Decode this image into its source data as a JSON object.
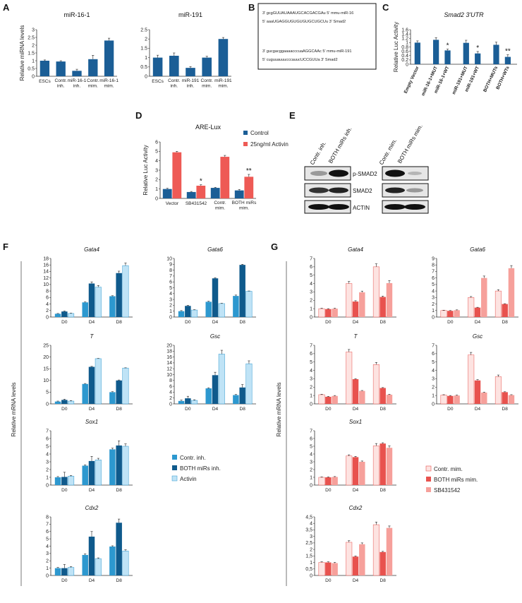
{
  "panels": {
    "A": "A",
    "B": "B",
    "C": "C",
    "D": "D",
    "E": "E",
    "F": "F",
    "G": "G"
  },
  "colors": {
    "blue": "#1b5e96",
    "red": "#ee5a55",
    "f1": "#2d98cf",
    "f2": "#0f5a8c",
    "f3": "#bfe3f6",
    "g1": "#fde3e1",
    "g2": "#e8524e",
    "g3": "#f6a09b"
  },
  "seqB": {
    "s1": "3' gcgGUUAUAAAUGCACGACGAu 5' mmu-miR-16",
    "s2": "5' aaaUGAGGUGUGUGUGCUGCUu 3' Smad2",
    "s3": "3' gucgacggaaaacccuaAGGCAAc 5' mmu-miR-191",
    "s4": "5' cuguuauuucccauucUCCGUUa 3' Smad2"
  },
  "blots": {
    "left_header": [
      "Contr. inh.",
      "BOTH miRs inh."
    ],
    "right_header": [
      "Contr. mim.",
      "BOTH miRs mim."
    ],
    "labels": [
      "p-SMAD2",
      "SMAD2",
      "ACTIN"
    ]
  },
  "legendF": [
    "Contr. inh.",
    "BOTH miRs inh.",
    "Activin"
  ],
  "legendG": [
    "Contr. mim.",
    "BOTH miRs mim.",
    "SB431542"
  ],
  "legendD": [
    "Control",
    "25ng/ml Activin"
  ],
  "ylabelF": "Relative mRNA levels",
  "ylabelG": "Relative mRNA levels",
  "chart_data": [
    {
      "id": "A1",
      "type": "bar",
      "title": "miR-16-1",
      "ylabel": "Relative miRNA levels",
      "ylim": [
        0,
        3
      ],
      "yticks": [
        0,
        0.5,
        1,
        1.5,
        2,
        2.5,
        3
      ],
      "categories": [
        "ESCs",
        "Contr. inh.",
        "miR-16-1 inh.",
        "Contr. mim.",
        "miR-16-1 mim."
      ],
      "series": [
        {
          "name": "miR-16-1",
          "values": [
            1.0,
            0.95,
            0.35,
            1.1,
            2.3
          ],
          "errors": [
            0.05,
            0.05,
            0.1,
            0.25,
            0.15
          ]
        }
      ]
    },
    {
      "id": "A2",
      "type": "bar",
      "title": "miR-191",
      "ylabel": "",
      "ylim": [
        0,
        2.5
      ],
      "yticks": [
        0,
        0.5,
        1,
        1.5,
        2,
        2.5
      ],
      "categories": [
        "ESCs",
        "Contr. inh.",
        "miR-191 inh.",
        "Contr. mim.",
        "miR-191 mim."
      ],
      "series": [
        {
          "name": "miR-191",
          "values": [
            1.0,
            1.1,
            0.45,
            1.0,
            2.0
          ],
          "errors": [
            0.13,
            0.15,
            0.07,
            0.07,
            0.08
          ]
        }
      ]
    },
    {
      "id": "C",
      "type": "bar",
      "title": "Smad2 3'UTR",
      "ylabel": "Relative Luc Activity",
      "ylim": [
        0,
        1.6
      ],
      "yticks": [
        0,
        0.2,
        0.4,
        0.6,
        0.8,
        1,
        1.2,
        1.4,
        1.6
      ],
      "categories": [
        "Empty Vector",
        "miR-16-1+MUT",
        "miR-16-1+WT",
        "miR-191+MUT",
        "miR-191+WT",
        "BOTH+MUTs",
        "BOTH+WTs"
      ],
      "series": [
        {
          "name": "Luc",
          "values": [
            1.0,
            1.13,
            0.64,
            0.99,
            0.5,
            0.9,
            0.34
          ],
          "errors": [
            0.08,
            0.1,
            0.06,
            0.12,
            0.09,
            0.12,
            0.1
          ]
        }
      ],
      "annotations": [
        "",
        "",
        "*",
        "",
        "*",
        "",
        "**"
      ]
    },
    {
      "id": "D",
      "type": "bar",
      "title": "ARE-Lux",
      "ylabel": "Relative Luc Activity",
      "ylim": [
        0,
        6
      ],
      "yticks": [
        0,
        1,
        2,
        3,
        4,
        5,
        6
      ],
      "categories": [
        "Vector",
        "SB431542",
        "Contr. mim.",
        "BOTH miRs mim."
      ],
      "series": [
        {
          "name": "Control",
          "values": [
            1.0,
            0.68,
            1.12,
            0.85
          ],
          "errors": [
            0.08,
            0.06,
            0.06,
            0.1
          ]
        },
        {
          "name": "25ng/ml Activin",
          "values": [
            4.9,
            1.35,
            4.42,
            2.3
          ],
          "errors": [
            0.1,
            0.1,
            0.15,
            0.25
          ]
        }
      ],
      "annotations": [
        "",
        "*",
        "",
        "**"
      ]
    },
    {
      "id": "F-Gata4",
      "type": "bar",
      "title": "Gata4",
      "ylim": [
        0,
        18
      ],
      "yticks": [
        0,
        2,
        4,
        6,
        8,
        10,
        12,
        14,
        16,
        18
      ],
      "categories": [
        "D0",
        "D4",
        "D8"
      ],
      "series": [
        {
          "name": "Contr. inh.",
          "values": [
            1,
            4.5,
            6.4
          ],
          "errors": [
            0.1,
            0.15,
            0.15
          ]
        },
        {
          "name": "BOTH miRs inh.",
          "values": [
            1.7,
            10.3,
            13.5
          ],
          "errors": [
            0.15,
            0.5,
            0.6
          ]
        },
        {
          "name": "Activin",
          "values": [
            1.1,
            9.2,
            15.8
          ],
          "errors": [
            0.1,
            0.5,
            0.8
          ]
        }
      ]
    },
    {
      "id": "F-Gata6",
      "type": "bar",
      "title": "Gata6",
      "ylim": [
        0,
        10
      ],
      "yticks": [
        0,
        1,
        2,
        3,
        4,
        5,
        6,
        7,
        8,
        9,
        10
      ],
      "categories": [
        "D0",
        "D4",
        "D8"
      ],
      "series": [
        {
          "name": "Contr. inh.",
          "values": [
            1,
            2.6,
            3.6
          ],
          "errors": [
            0.1,
            0.1,
            0.15
          ]
        },
        {
          "name": "BOTH miRs inh.",
          "values": [
            1.9,
            6.6,
            8.9
          ],
          "errors": [
            0.1,
            0.1,
            0.1
          ]
        },
        {
          "name": "Activin",
          "values": [
            1.2,
            2.3,
            4.4
          ],
          "errors": [
            0.05,
            0.05,
            0.05
          ]
        }
      ]
    },
    {
      "id": "F-T",
      "type": "bar",
      "title": "T",
      "ylim": [
        0,
        25
      ],
      "yticks": [
        0,
        5,
        10,
        15,
        20,
        25
      ],
      "categories": [
        "D0",
        "D4",
        "D8"
      ],
      "series": [
        {
          "name": "Contr. inh.",
          "values": [
            1,
            8.5,
            5
          ],
          "errors": [
            0.2,
            0.2,
            0.2
          ]
        },
        {
          "name": "BOTH miRs inh.",
          "values": [
            1.7,
            15.8,
            10
          ],
          "errors": [
            0.3,
            0.2,
            0.2
          ]
        },
        {
          "name": "Activin",
          "values": [
            1.2,
            19.3,
            15.3
          ],
          "errors": [
            0.2,
            0.1,
            0.1
          ]
        }
      ]
    },
    {
      "id": "F-Gsc",
      "type": "bar",
      "title": "Gsc",
      "ylim": [
        0,
        20
      ],
      "yticks": [
        0,
        2,
        4,
        6,
        8,
        10,
        12,
        14,
        16,
        18,
        20
      ],
      "categories": [
        "D0",
        "D4",
        "D8"
      ],
      "series": [
        {
          "name": "Contr. inh.",
          "values": [
            1,
            5.3,
            3
          ],
          "errors": [
            0.3,
            0.2,
            0.2
          ]
        },
        {
          "name": "BOTH miRs inh.",
          "values": [
            1.9,
            9.8,
            5.6
          ],
          "errors": [
            0.7,
            1,
            1
          ]
        },
        {
          "name": "Activin",
          "values": [
            1.2,
            17,
            13.7
          ],
          "errors": [
            0.2,
            1.3,
            1
          ]
        }
      ]
    },
    {
      "id": "F-Sox1",
      "type": "bar",
      "title": "Sox1",
      "ylim": [
        0,
        7
      ],
      "yticks": [
        0,
        1,
        2,
        3,
        4,
        5,
        6,
        7
      ],
      "categories": [
        "D0",
        "D4",
        "D8"
      ],
      "series": [
        {
          "name": "Contr. inh.",
          "values": [
            1,
            2.5,
            4.6
          ],
          "errors": [
            0.1,
            0.1,
            0.15
          ]
        },
        {
          "name": "BOTH miRs inh.",
          "values": [
            1.05,
            3.1,
            5.1
          ],
          "errors": [
            0.6,
            0.6,
            0.6
          ]
        },
        {
          "name": "Activin",
          "values": [
            1.15,
            3.25,
            5
          ],
          "errors": [
            0.08,
            0.2,
            0.3
          ]
        }
      ]
    },
    {
      "id": "F-Cdx2",
      "type": "bar",
      "title": "Cdx2",
      "ylim": [
        0,
        8
      ],
      "yticks": [
        0,
        1,
        2,
        3,
        4,
        5,
        6,
        7,
        8
      ],
      "categories": [
        "D0",
        "D4",
        "D8"
      ],
      "series": [
        {
          "name": "Contr. inh.",
          "values": [
            1,
            2.8,
            3.95
          ],
          "errors": [
            0.1,
            0.15,
            0.1
          ]
        },
        {
          "name": "BOTH miRs inh.",
          "values": [
            1,
            5.3,
            7.2
          ],
          "errors": [
            0.5,
            0.7,
            0.5
          ]
        },
        {
          "name": "Activin",
          "values": [
            1.1,
            2.3,
            3.35
          ],
          "errors": [
            0.1,
            0.1,
            0.15
          ]
        }
      ]
    },
    {
      "id": "G-Gata4",
      "type": "bar",
      "title": "Gata4",
      "ylim": [
        0,
        7
      ],
      "yticks": [
        0,
        1,
        2,
        3,
        4,
        5,
        6,
        7
      ],
      "categories": [
        "D0",
        "D4",
        "D8"
      ],
      "series": [
        {
          "name": "Contr. mim.",
          "values": [
            1,
            4,
            6
          ],
          "errors": [
            0.05,
            0.25,
            0.35
          ]
        },
        {
          "name": "BOTH miRs mim.",
          "values": [
            0.95,
            1.85,
            2.4
          ],
          "errors": [
            0.05,
            0.1,
            0.1
          ]
        },
        {
          "name": "SB431542",
          "values": [
            1,
            2.95,
            4.05
          ],
          "errors": [
            0.05,
            0.15,
            0.3
          ]
        }
      ]
    },
    {
      "id": "G-Gata6",
      "type": "bar",
      "title": "Gata6",
      "ylim": [
        0,
        9
      ],
      "yticks": [
        0,
        1,
        2,
        3,
        4,
        5,
        6,
        7,
        8,
        9
      ],
      "categories": [
        "D0",
        "D4",
        "D8"
      ],
      "series": [
        {
          "name": "Contr. mim.",
          "values": [
            1,
            3,
            4
          ],
          "errors": [
            0.05,
            0.15,
            0.2
          ]
        },
        {
          "name": "BOTH miRs mim.",
          "values": [
            0.95,
            1.45,
            2
          ],
          "errors": [
            0.05,
            0.05,
            0.05
          ]
        },
        {
          "name": "SB431542",
          "values": [
            1.05,
            6,
            7.5
          ],
          "errors": [
            0.05,
            0.3,
            0.4
          ]
        }
      ]
    },
    {
      "id": "G-T",
      "type": "bar",
      "title": "T",
      "ylim": [
        0,
        7
      ],
      "yticks": [
        0,
        1,
        2,
        3,
        4,
        5,
        6,
        7
      ],
      "categories": [
        "D0",
        "D4",
        "D8"
      ],
      "series": [
        {
          "name": "Contr. mim.",
          "values": [
            1.1,
            6.2,
            4.7
          ],
          "errors": [
            0.05,
            0.3,
            0.25
          ]
        },
        {
          "name": "BOTH miRs mim.",
          "values": [
            0.85,
            2.95,
            1.9
          ],
          "errors": [
            0.05,
            0.05,
            0.05
          ]
        },
        {
          "name": "SB431542",
          "values": [
            0.95,
            1.55,
            1.1
          ],
          "errors": [
            0.05,
            0.05,
            0.05
          ]
        }
      ]
    },
    {
      "id": "G-Gsc",
      "type": "bar",
      "title": "Gsc",
      "ylim": [
        0,
        7
      ],
      "yticks": [
        0,
        1,
        2,
        3,
        4,
        5,
        6,
        7
      ],
      "categories": [
        "D0",
        "D4",
        "D8"
      ],
      "series": [
        {
          "name": "Contr. mim.",
          "values": [
            1.05,
            5.85,
            3.25
          ],
          "errors": [
            0.05,
            0.3,
            0.2
          ]
        },
        {
          "name": "BOTH miRs mim.",
          "values": [
            0.95,
            2.8,
            1.4
          ],
          "errors": [
            0.05,
            0.1,
            0.05
          ]
        },
        {
          "name": "SB431542",
          "values": [
            1,
            1.35,
            1.05
          ],
          "errors": [
            0.05,
            0.05,
            0.05
          ]
        }
      ]
    },
    {
      "id": "G-Sox1",
      "type": "bar",
      "title": "Sox1",
      "ylim": [
        0,
        7
      ],
      "yticks": [
        0,
        1,
        2,
        3,
        4,
        5,
        6,
        7
      ],
      "categories": [
        "D0",
        "D4",
        "D8"
      ],
      "series": [
        {
          "name": "Contr. mim.",
          "values": [
            1,
            3.75,
            5.05
          ],
          "errors": [
            0.05,
            0.15,
            0.3
          ]
        },
        {
          "name": "BOTH miRs mim.",
          "values": [
            1,
            3.6,
            5.35
          ],
          "errors": [
            0.05,
            0.1,
            0.1
          ]
        },
        {
          "name": "SB431542",
          "values": [
            1.05,
            3,
            4.8
          ],
          "errors": [
            0.05,
            0.1,
            0.25
          ]
        }
      ]
    },
    {
      "id": "G-Cdx2",
      "type": "bar",
      "title": "Cdx2",
      "ylim": [
        0,
        4.5
      ],
      "yticks": [
        0,
        0.5,
        1,
        1.5,
        2,
        2.5,
        3,
        3.5,
        4,
        4.5
      ],
      "ytickLabels": [
        "0",
        "0,5",
        "1",
        "1,5",
        "2",
        "2,5",
        "3",
        "3,5",
        "4",
        "4,5"
      ],
      "categories": [
        "D0",
        "D4",
        "D8"
      ],
      "series": [
        {
          "name": "Contr. mim.",
          "values": [
            1,
            2.55,
            3.9
          ],
          "errors": [
            0.05,
            0.12,
            0.2
          ]
        },
        {
          "name": "BOTH miRs mim.",
          "values": [
            1,
            1.45,
            1.8
          ],
          "errors": [
            0.05,
            0.05,
            0.05
          ]
        },
        {
          "name": "SB431542",
          "values": [
            0.95,
            2.4,
            3.65
          ],
          "errors": [
            0.05,
            0.1,
            0.15
          ]
        }
      ]
    }
  ]
}
